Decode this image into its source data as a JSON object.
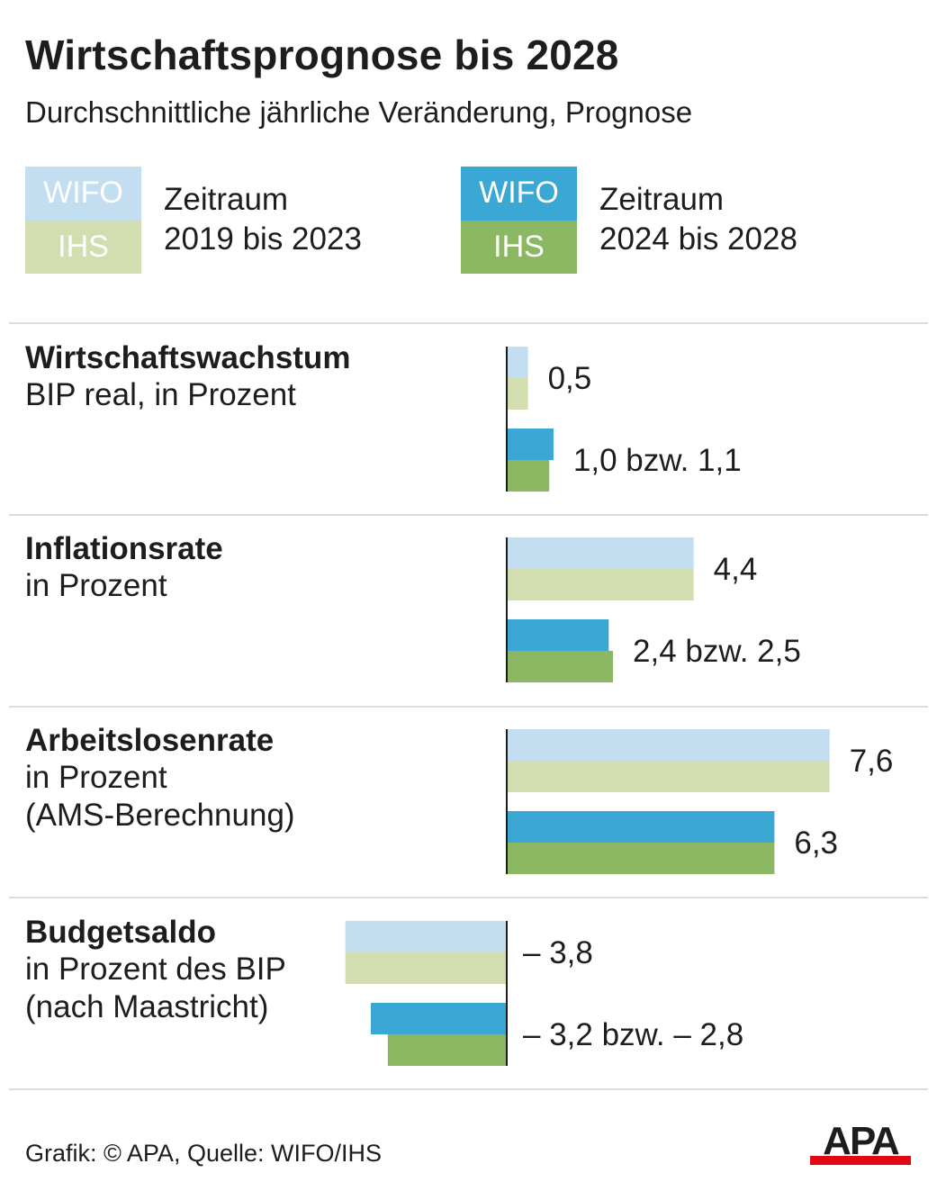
{
  "title": "Wirtschaftsprognose bis 2028",
  "subtitle": "Durchschnittliche jährliche Veränderung, Prognose",
  "legend": [
    {
      "top_label": "WIFO",
      "bottom_label": "IHS",
      "text_line1": "Zeitraum",
      "text_line2": "2019 bis 2023",
      "top_color": "#c3def0",
      "bottom_color": "#d3deb0"
    },
    {
      "top_label": "WIFO",
      "bottom_label": "IHS",
      "text_line1": "Zeitraum",
      "text_line2": "2024 bis 2028",
      "top_color": "#3aa7d4",
      "bottom_color": "#8cb864"
    }
  ],
  "rows": [
    {
      "title": "Wirtschaftswachstum",
      "sub": [
        "BIP real, in Prozent"
      ]
    },
    {
      "title": "Inflationsrate",
      "sub": [
        "in Prozent"
      ]
    },
    {
      "title": "Arbeitslosenrate",
      "sub": [
        "in Prozent",
        "(AMS-Berechnung)"
      ]
    },
    {
      "title": "Budgetsaldo",
      "sub": [
        "in Prozent des BIP",
        "(nach Maastricht)"
      ]
    }
  ],
  "chart_data": {
    "type": "bar",
    "orientation": "horizontal",
    "series": [
      {
        "name": "WIFO 2019 bis 2023",
        "color": "#c3def0"
      },
      {
        "name": "IHS 2019 bis 2023",
        "color": "#d3deb0"
      },
      {
        "name": "WIFO 2024 bis 2028",
        "color": "#3aa7d4"
      },
      {
        "name": "IHS 2024 bis 2028",
        "color": "#8cb864"
      }
    ],
    "groups": [
      {
        "category": "Wirtschaftswachstum",
        "period_2019_2023": {
          "wifo": 0.5,
          "ihs": 0.5,
          "label": "0,5"
        },
        "period_2024_2028": {
          "wifo": 1.1,
          "ihs": 1.0,
          "label": "1,0 bzw. 1,1"
        }
      },
      {
        "category": "Inflationsrate",
        "period_2019_2023": {
          "wifo": 4.4,
          "ihs": 4.4,
          "label": "4,4"
        },
        "period_2024_2028": {
          "wifo": 2.4,
          "ihs": 2.5,
          "label": "2,4 bzw. 2,5"
        }
      },
      {
        "category": "Arbeitslosenrate",
        "period_2019_2023": {
          "wifo": 7.6,
          "ihs": 7.6,
          "label": "7,6"
        },
        "period_2024_2028": {
          "wifo": 6.3,
          "ihs": 6.3,
          "label": "6,3"
        }
      },
      {
        "category": "Budgetsaldo",
        "period_2019_2023": {
          "wifo": -3.8,
          "ihs": -3.8,
          "label": "– 3,8"
        },
        "period_2024_2028": {
          "wifo": -3.2,
          "ihs": -2.8,
          "label": "– 3,2 bzw. – 2,8"
        }
      }
    ]
  },
  "footer": "Grafik: © APA, Quelle: WIFO/IHS",
  "logo": {
    "text": "APA",
    "color": "#e30613"
  }
}
